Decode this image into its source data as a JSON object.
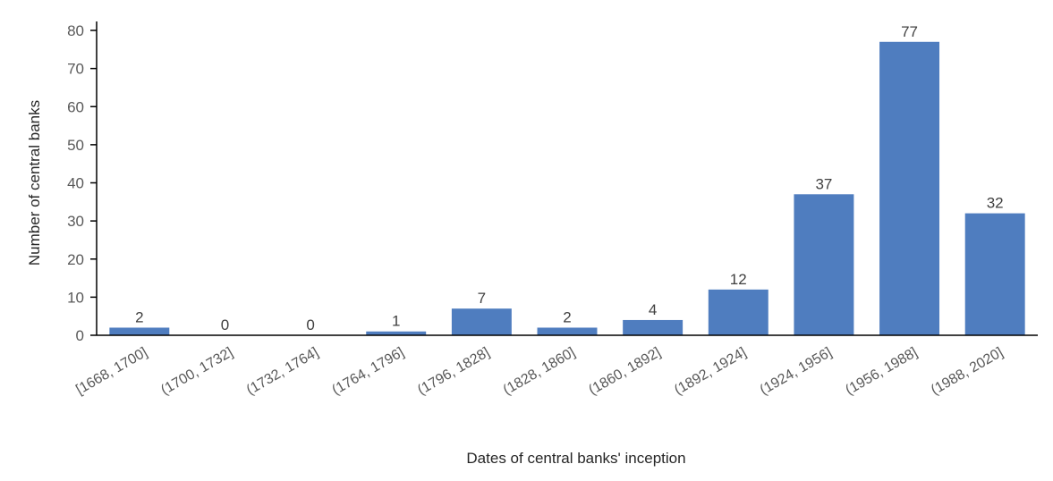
{
  "chart_data": {
    "type": "bar",
    "title": "",
    "xlabel": "Dates of central banks' inception",
    "ylabel": "Number of central banks",
    "categories": [
      "[1668, 1700]",
      "(1700, 1732]",
      "(1732, 1764]",
      "(1764, 1796]",
      "(1796, 1828]",
      "(1828, 1860]",
      "(1860, 1892]",
      "(1892, 1924]",
      "(1924, 1956]",
      "(1956, 1988]",
      "(1988, 2020]"
    ],
    "values": [
      2,
      0,
      0,
      1,
      7,
      2,
      4,
      12,
      37,
      77,
      32
    ],
    "ylim": [
      0,
      80
    ],
    "yticks": [
      0,
      10,
      20,
      30,
      40,
      50,
      60,
      70,
      80
    ],
    "data_labels": true,
    "grid": false,
    "legend": "none",
    "bar_color": "#4F7DBF",
    "axis_color": "#000000"
  }
}
